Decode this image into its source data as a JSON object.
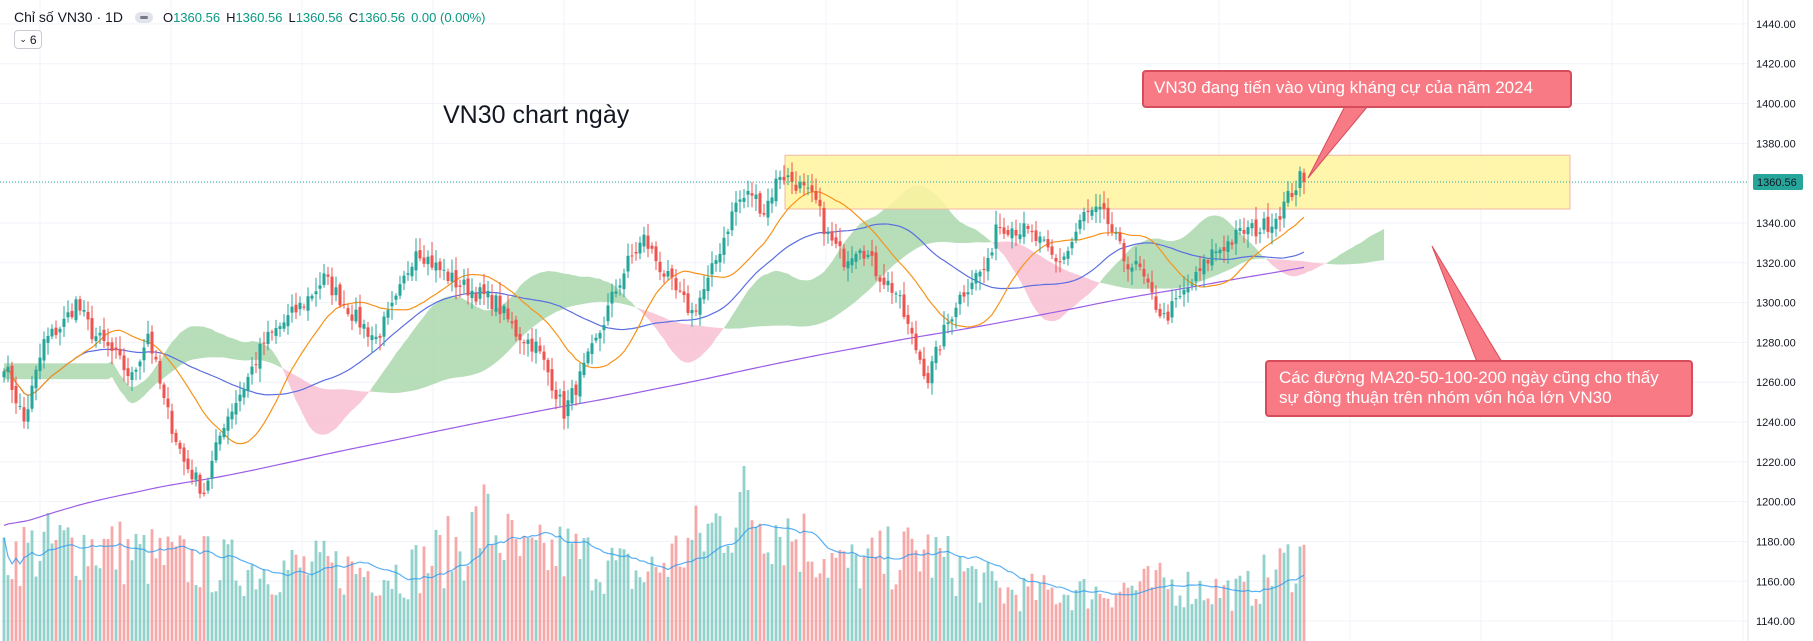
{
  "header": {
    "symbol": "Chỉ số VN30 · 1D",
    "o_label": "O",
    "o_value": "1360.56",
    "h_label": "H",
    "h_value": "1360.56",
    "l_label": "L",
    "l_value": "1360.56",
    "c_label": "C",
    "c_value": "1360.56",
    "change": "0.00 (0.00%)",
    "indicator_count": "6"
  },
  "annotations": {
    "title": "VN30 chart ngày",
    "resistance_note": "VN30 đang tiến vào vùng kháng cự của năm 2024",
    "ma_note_line1": "Các đường MA20-50-100-200 ngày cũng cho thấy",
    "ma_note_line2": "sự đồng thuận trên nhóm vốn hóa lớn VN30"
  },
  "colors": {
    "up": "#26a69a",
    "down": "#ef5350",
    "ma20": "#f7931a",
    "ma50": "#5b6ee1",
    "ma200": "#9c5ce6",
    "cloud_bull": "#a5d6a7",
    "cloud_bear": "#f8bbd0",
    "zone": "#fff59d",
    "callout": "#f77a85"
  },
  "chart_data": {
    "type": "candlestick",
    "timeframe": "1D",
    "last_price": 1360.56,
    "last_price_label": "1360.56",
    "ylim": [
      1130,
      1452
    ],
    "y_ticks": [
      "1440.00",
      "1420.00",
      "1400.00",
      "1380.00",
      "1360.00",
      "1340.00",
      "1320.00",
      "1300.00",
      "1280.00",
      "1260.00",
      "1240.00",
      "1220.00",
      "1200.00",
      "1180.00",
      "1160.00",
      "1140.00"
    ],
    "y_tick_values": [
      1440,
      1420,
      1400,
      1380,
      1360,
      1340,
      1320,
      1300,
      1280,
      1260,
      1240,
      1220,
      1200,
      1180,
      1160,
      1140
    ],
    "close_anchors": [
      [
        0,
        1270
      ],
      [
        5,
        1240
      ],
      [
        10,
        1280
      ],
      [
        15,
        1290
      ],
      [
        18,
        1300
      ],
      [
        22,
        1285
      ],
      [
        27,
        1275
      ],
      [
        32,
        1262
      ],
      [
        36,
        1285
      ],
      [
        40,
        1250
      ],
      [
        45,
        1220
      ],
      [
        50,
        1205
      ],
      [
        55,
        1240
      ],
      [
        60,
        1258
      ],
      [
        65,
        1280
      ],
      [
        70,
        1290
      ],
      [
        75,
        1300
      ],
      [
        80,
        1312
      ],
      [
        85,
        1300
      ],
      [
        88,
        1292
      ],
      [
        93,
        1282
      ],
      [
        98,
        1300
      ],
      [
        103,
        1328
      ],
      [
        108,
        1318
      ],
      [
        113,
        1310
      ],
      [
        118,
        1305
      ],
      [
        123,
        1300
      ],
      [
        128,
        1285
      ],
      [
        133,
        1278
      ],
      [
        136,
        1265
      ],
      [
        140,
        1245
      ],
      [
        144,
        1262
      ],
      [
        148,
        1280
      ],
      [
        152,
        1302
      ],
      [
        156,
        1320
      ],
      [
        160,
        1332
      ],
      [
        164,
        1318
      ],
      [
        168,
        1305
      ],
      [
        172,
        1295
      ],
      [
        176,
        1310
      ],
      [
        180,
        1333
      ],
      [
        183,
        1350
      ],
      [
        187,
        1355
      ],
      [
        190,
        1346
      ],
      [
        194,
        1365
      ],
      [
        198,
        1360
      ],
      [
        203,
        1350
      ],
      [
        206,
        1333
      ],
      [
        210,
        1322
      ],
      [
        214,
        1330
      ],
      [
        218,
        1316
      ],
      [
        223,
        1305
      ],
      [
        227,
        1282
      ],
      [
        231,
        1262
      ],
      [
        235,
        1285
      ],
      [
        238,
        1300
      ],
      [
        242,
        1312
      ],
      [
        246,
        1318
      ],
      [
        248,
        1340
      ],
      [
        252,
        1338
      ],
      [
        255,
        1336
      ],
      [
        259,
        1330
      ],
      [
        263,
        1320
      ],
      [
        266,
        1326
      ],
      [
        270,
        1344
      ],
      [
        274,
        1345
      ],
      [
        276,
        1340
      ],
      [
        280,
        1322
      ],
      [
        284,
        1316
      ],
      [
        286,
        1306
      ],
      [
        290,
        1292
      ],
      [
        294,
        1302
      ],
      [
        298,
        1312
      ],
      [
        302,
        1325
      ],
      [
        306,
        1330
      ],
      [
        310,
        1336
      ],
      [
        314,
        1337
      ],
      [
        318,
        1343
      ],
      [
        320,
        1349
      ],
      [
        322,
        1356
      ],
      [
        324,
        1362
      ],
      [
        325,
        1360.56
      ]
    ],
    "volume_anchors": [
      [
        0,
        0.55
      ],
      [
        20,
        0.6
      ],
      [
        40,
        0.5
      ],
      [
        60,
        0.45
      ],
      [
        80,
        0.45
      ],
      [
        100,
        0.42
      ],
      [
        115,
        0.6
      ],
      [
        120,
        0.75
      ],
      [
        130,
        0.5
      ],
      [
        140,
        0.55
      ],
      [
        160,
        0.4
      ],
      [
        175,
        0.65
      ],
      [
        185,
        0.85
      ],
      [
        195,
        0.7
      ],
      [
        210,
        0.45
      ],
      [
        230,
        0.55
      ],
      [
        250,
        0.3
      ],
      [
        270,
        0.3
      ],
      [
        290,
        0.35
      ],
      [
        310,
        0.3
      ],
      [
        325,
        0.55
      ]
    ],
    "indicators": [
      "MA20",
      "MA50",
      "MA100/MA200",
      "Ichimoku Cloud",
      "Volume",
      "Volume MA"
    ],
    "resistance_zone": {
      "from": 1347,
      "to": 1374
    }
  }
}
